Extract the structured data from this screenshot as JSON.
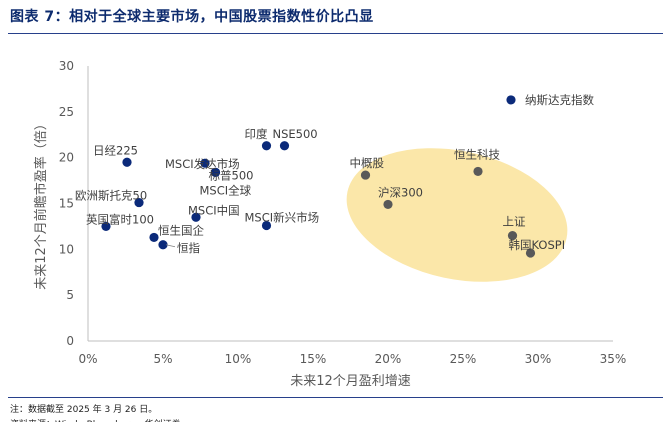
{
  "header": {
    "title": "图表 7：相对于全球主要市场，中国股票指数性价比凸显"
  },
  "footer": {
    "note": "注：数据截至 2025 年 3 月 26 日。",
    "source_partial": "资料来源：Wind，Bloomberg，华创证券"
  },
  "colors": {
    "global_point": "#0b2a7a",
    "china_point": "#595959",
    "highlight_fill": "#fbe7a9",
    "title": "#0d2b6e"
  },
  "chart_data": {
    "type": "scatter",
    "xlabel": "未来12个月盈利增速",
    "ylabel": "未来12个月前瞻市盈率（倍）",
    "xlim": [
      0,
      35
    ],
    "ylim": [
      0,
      30
    ],
    "x_ticks": [
      "0%",
      "5%",
      "10%",
      "15%",
      "20%",
      "25%",
      "30%",
      "35%"
    ],
    "y_ticks": [
      "0",
      "5",
      "10",
      "15",
      "20",
      "25",
      "30"
    ],
    "grid": false,
    "points": [
      {
        "label": "纳斯达克指数",
        "x": 28.2,
        "y": 26.3,
        "group": "global"
      },
      {
        "label": "日经225",
        "x": 2.6,
        "y": 19.5,
        "group": "global"
      },
      {
        "label": "印度",
        "x": 11.9,
        "y": 21.3,
        "group": "global"
      },
      {
        "label": "NSE500",
        "x": 13.1,
        "y": 21.3,
        "group": "global"
      },
      {
        "label": "标普500",
        "x": 8.5,
        "y": 18.4,
        "group": "global"
      },
      {
        "label": "MSCI发达市场",
        "x": 7.8,
        "y": 19.4,
        "group": "global"
      },
      {
        "label": "MSCI全球",
        "x": 8.5,
        "y": 18.4,
        "group": "global"
      },
      {
        "label": "欧洲斯托克50",
        "x": 3.4,
        "y": 15.1,
        "group": "global"
      },
      {
        "label": "MSCI中国",
        "x": 7.2,
        "y": 13.5,
        "group": "global"
      },
      {
        "label": "英国富时100",
        "x": 1.2,
        "y": 12.5,
        "group": "global"
      },
      {
        "label": "恒生国企",
        "x": 4.4,
        "y": 11.3,
        "group": "global"
      },
      {
        "label": "恒指",
        "x": 5.0,
        "y": 10.5,
        "group": "global"
      },
      {
        "label": "MSCI新兴市场",
        "x": 11.9,
        "y": 12.6,
        "group": "global"
      },
      {
        "label": "中概股",
        "x": 18.5,
        "y": 18.1,
        "group": "china"
      },
      {
        "label": "恒生科技",
        "x": 26.0,
        "y": 18.5,
        "group": "china"
      },
      {
        "label": "沪深300",
        "x": 20.0,
        "y": 14.9,
        "group": "china"
      },
      {
        "label": "上证",
        "x": 28.3,
        "y": 11.5,
        "group": "china"
      },
      {
        "label": "韩国KOSPI",
        "x": 29.5,
        "y": 9.6,
        "group": "china"
      }
    ]
  }
}
